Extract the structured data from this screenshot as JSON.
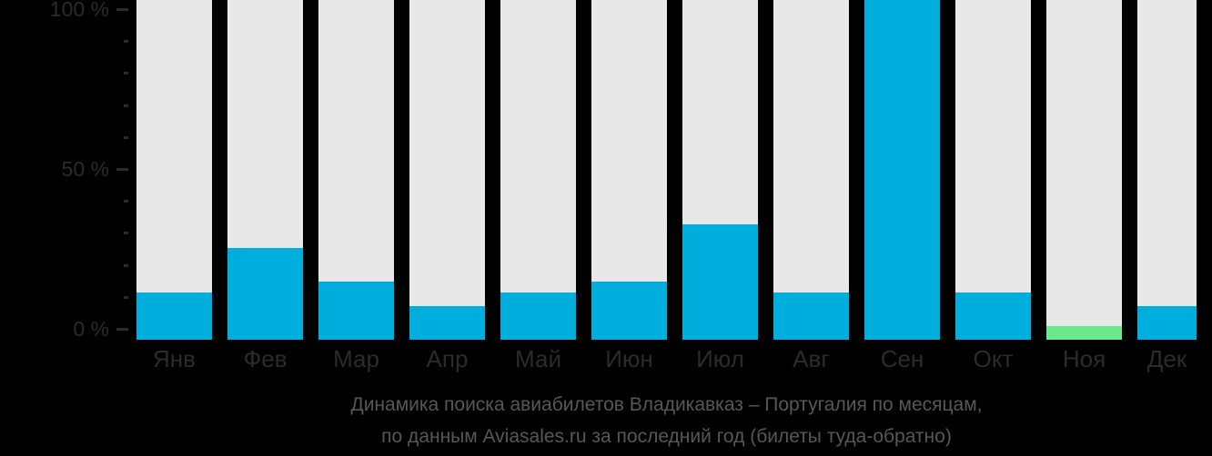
{
  "chart_data": {
    "type": "bar",
    "title_line1": "Динамика поиска авиабилетов Владикавказ – Португалия по месяцам,",
    "title_line2": "по данным Aviasales.ru за последний год (билеты туда-обратно)",
    "categories": [
      "Янв",
      "Фев",
      "Мар",
      "Апр",
      "Май",
      "Июн",
      "Июл",
      "Авг",
      "Сен",
      "Окт",
      "Ноя",
      "Дек"
    ],
    "values": [
      14,
      27,
      17,
      10,
      14,
      17,
      34,
      14,
      100,
      14,
      4,
      10
    ],
    "unit": "%",
    "ylim": [
      0,
      100
    ],
    "yticks": [
      {
        "value": 100,
        "label": "100 %"
      },
      {
        "value": 50,
        "label": "50 %"
      },
      {
        "value": 0,
        "label": "0 %"
      }
    ],
    "minor_ticks": [
      90,
      80,
      70,
      60,
      40,
      30,
      20,
      10
    ],
    "highlight_index": 10,
    "grid": false,
    "legend": null,
    "colors": {
      "bar": "#00aedd",
      "highlight_bar": "#6ce98c",
      "column_background": "#e8e8e8",
      "page_background": "#000000",
      "axis_text": "#2b2b2b",
      "title_text": "#575757"
    }
  }
}
